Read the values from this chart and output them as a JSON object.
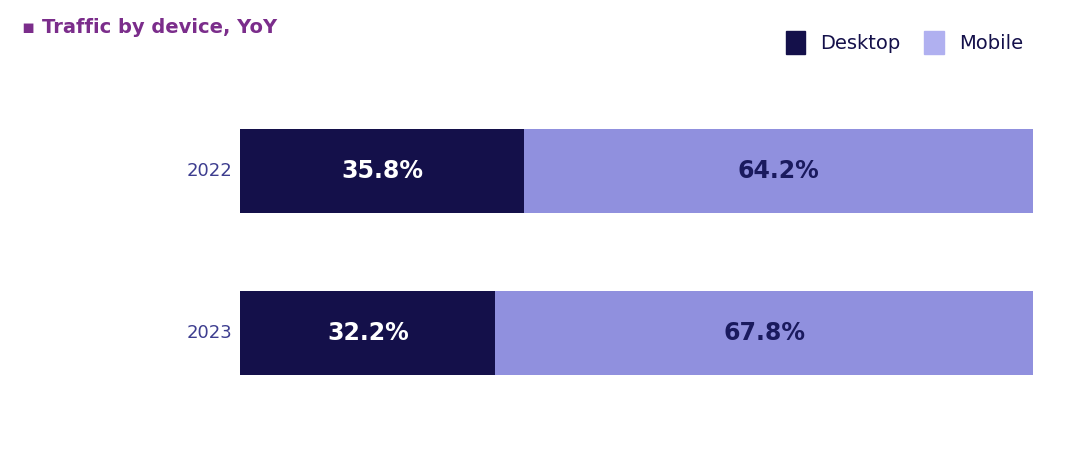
{
  "title": "Traffic by device, YoY",
  "title_color": "#7B2D8B",
  "background_color": "#ffffff",
  "years": [
    "2022",
    "2023"
  ],
  "desktop_values": [
    35.8,
    32.2
  ],
  "mobile_values": [
    64.2,
    67.8
  ],
  "desktop_color": "#14104a",
  "mobile_color": "#9090de",
  "desktop_label": "Desktop",
  "mobile_label": "Mobile",
  "label_color_desktop": "#ffffff",
  "label_color_mobile": "#1a1a5e",
  "legend_desktop_color": "#14104a",
  "legend_mobile_color": "#b0b0f0",
  "bar_height": 0.52,
  "year_label_color": "#3d3d8f",
  "year_fontsize": 13,
  "value_fontsize": 17,
  "title_fontsize": 14,
  "legend_fontsize": 14
}
